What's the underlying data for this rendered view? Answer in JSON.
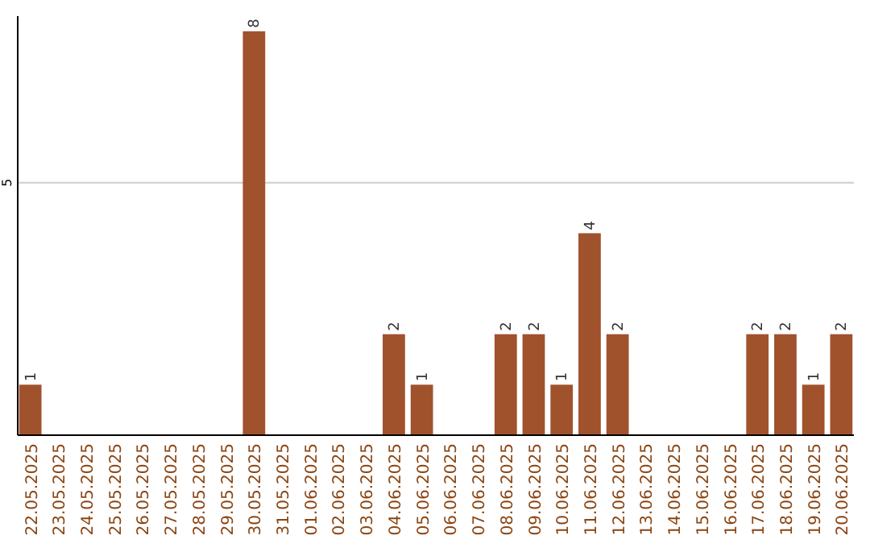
{
  "chart_data": {
    "type": "bar",
    "categories": [
      "22.05.2025",
      "23.05.2025",
      "24.05.2025",
      "25.05.2025",
      "26.05.2025",
      "27.05.2025",
      "28.05.2025",
      "29.05.2025",
      "30.05.2025",
      "31.05.2025",
      "01.06.2025",
      "02.06.2025",
      "03.06.2025",
      "04.06.2025",
      "05.06.2025",
      "06.06.2025",
      "07.06.2025",
      "08.06.2025",
      "09.06.2025",
      "10.06.2025",
      "11.06.2025",
      "12.06.2025",
      "13.06.2025",
      "14.06.2025",
      "15.06.2025",
      "16.06.2025",
      "17.06.2025",
      "18.06.2025",
      "19.06.2025",
      "20.06.2025"
    ],
    "values": [
      1,
      0,
      0,
      0,
      0,
      0,
      0,
      0,
      8,
      0,
      0,
      0,
      0,
      2,
      1,
      0,
      0,
      2,
      2,
      1,
      4,
      2,
      0,
      0,
      0,
      0,
      2,
      2,
      1,
      2
    ],
    "value_labels": [
      "1",
      null,
      null,
      null,
      null,
      null,
      null,
      null,
      "8",
      null,
      null,
      null,
      null,
      "2",
      "1",
      null,
      null,
      "2",
      "2",
      "1",
      "4",
      "2",
      null,
      null,
      null,
      null,
      "2",
      "2",
      "1",
      "2"
    ],
    "color": "#a0522d",
    "ylim": [
      0,
      8.3
    ],
    "yticks": [
      5
    ],
    "grid": "y"
  }
}
